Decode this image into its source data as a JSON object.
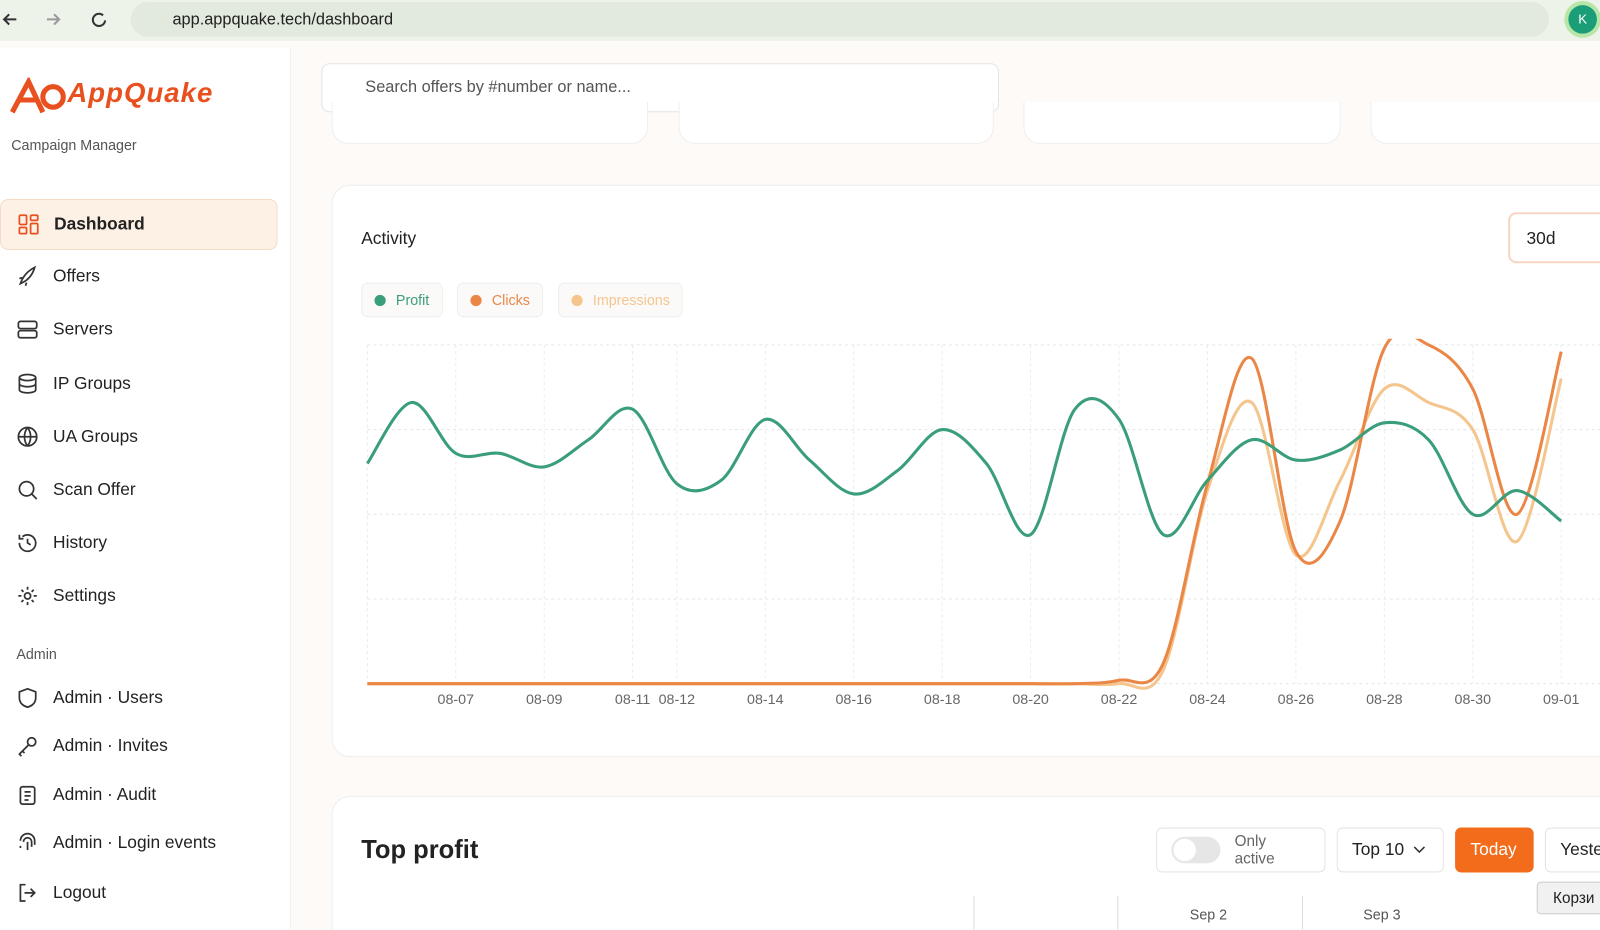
{
  "browser": {
    "url": "app.appquake.tech/dashboard",
    "avatar": "K"
  },
  "sidebar": {
    "logo": "AppQuake",
    "subtitle": "Campaign Manager",
    "nav": [
      "Dashboard",
      "Offers",
      "Servers",
      "IP Groups",
      "UA Groups",
      "Scan Offer",
      "History",
      "Settings"
    ],
    "admin_label": "Admin",
    "admin_nav": [
      "Admin · Users",
      "Admin · Invites",
      "Admin · Audit",
      "Admin · Login events"
    ],
    "logout": "Logout"
  },
  "search_placeholder": "Search offers by #number or name...",
  "chart_data": {
    "type": "line",
    "title": "Activity",
    "range": "30d",
    "categories": [
      null,
      null,
      "08-07",
      null,
      "08-09",
      null,
      "08-11",
      "08-12",
      null,
      "08-14",
      null,
      "08-16",
      null,
      "08-18",
      null,
      "08-20",
      null,
      "08-22",
      null,
      "08-24",
      null,
      "08-26",
      null,
      "08-28",
      null,
      "08-30",
      null,
      "09-01"
    ],
    "series": [
      {
        "name": "Profit",
        "color": "#3a9e7a",
        "values": [
          65,
          83,
          68,
          68,
          64,
          72,
          81,
          59,
          60,
          78,
          66,
          56,
          63,
          75,
          65,
          44,
          81,
          78,
          44,
          60,
          72,
          66,
          69,
          77,
          72,
          50,
          57,
          48
        ]
      },
      {
        "name": "Clicks",
        "color": "#ea8746",
        "values": [
          0,
          0,
          0,
          0,
          0,
          0,
          0,
          0,
          0,
          0,
          0,
          0,
          0,
          0,
          0,
          0,
          0,
          1,
          6,
          59,
          96,
          39,
          48,
          99,
          100,
          87,
          50,
          98
        ]
      },
      {
        "name": "Impressions",
        "color": "#f5c58e",
        "values": [
          0,
          0,
          0,
          0,
          0,
          0,
          0,
          0,
          0,
          0,
          0,
          0,
          0,
          0,
          0,
          0,
          0,
          0,
          4,
          57,
          83,
          38,
          60,
          87,
          83,
          75,
          42,
          90
        ]
      }
    ],
    "ylim": [
      0,
      100
    ],
    "yticks": [
      0,
      25,
      50,
      75,
      100
    ],
    "grid": true
  },
  "top_profit": {
    "title": "Top profit",
    "toggle_label": "Only active",
    "top_select": "Top 10",
    "buttons": [
      "Today",
      "Yeste"
    ],
    "columns": [
      "Sep 2",
      "Sep 3"
    ]
  },
  "tooltip": "Корзи"
}
